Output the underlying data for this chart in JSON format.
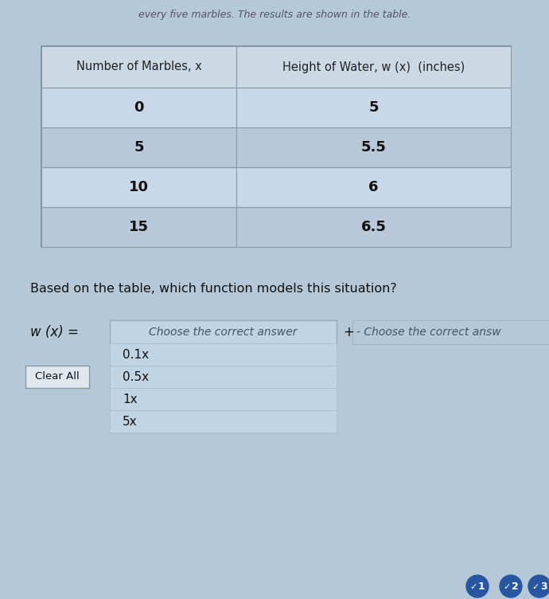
{
  "top_text": "every five marbles. The results are shown in the table.",
  "table_headers": [
    "Number of Marbles, x",
    "Height of Water, w (x)  (inches)"
  ],
  "table_data": [
    [
      "0",
      "5"
    ],
    [
      "5",
      "5.5"
    ],
    [
      "10",
      "6"
    ],
    [
      "15",
      "6.5"
    ]
  ],
  "question_text": "Based on the table, which function models this situation?",
  "wx_label": "w (x) =",
  "dropdown_text": "Choose the correct answer",
  "plus_text": "+",
  "dropdown2_text": "- Choose the correct answ",
  "answer_options": [
    "0.1x",
    "0.5x",
    "1x",
    "5x"
  ],
  "clear_all_label": "Clear All",
  "circle_labels": [
    "1",
    "2",
    "3"
  ],
  "bg_color": "#b4c8d8",
  "table_bg_light": "#c8d8e8",
  "table_bg_dark": "#b8c8d8",
  "table_header_bg": "#ccd8e4",
  "dropdown_bg": "#c0d4e4",
  "clear_btn_bg": "#e0e8ee",
  "circle_color": "#2856a0",
  "text_color": "#111111",
  "header_text_color": "#222222",
  "top_text_color": "#555566",
  "question_text_color": "#111111"
}
